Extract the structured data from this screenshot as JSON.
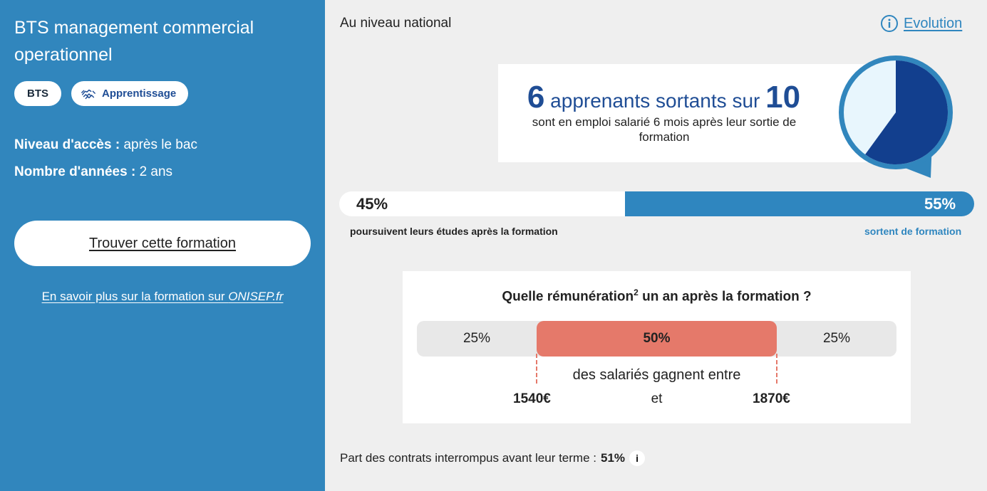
{
  "sidebar": {
    "title": "BTS management commercial operationnel",
    "tags": [
      "BTS",
      "Apprentissage"
    ],
    "access_label": "Niveau d'accès :",
    "access_value": "après le bac",
    "years_label": "Nombre d'années :",
    "years_value": "2 ans",
    "find_button": "Trouver cette formation",
    "more_link_prefix": "En savoir plus sur la formation sur ",
    "more_link_site": "ONISEP.fr"
  },
  "main": {
    "scope": "Au niveau national",
    "evolution_label": "Evolution",
    "stat": {
      "count": "6",
      "text_mid": "apprenants sortants sur",
      "total": "10",
      "description": "sont en emploi salarié 6 mois après leur sortie de formation",
      "share": 0.6
    },
    "split": {
      "left_value": "45%",
      "right_value": "55%",
      "right_fraction": 0.55,
      "left_label": "poursuivent leurs études après la formation",
      "right_label": "sortent de formation"
    },
    "salary": {
      "question": "Quelle rémunération",
      "question_sup": "2",
      "question_end": "un an après la formation ?",
      "left_pct": "25%",
      "mid_pct": "50%",
      "right_pct": "25%",
      "earn_text": "des salariés gagnent entre",
      "low": "1540€",
      "and": "et",
      "high": "1870€"
    },
    "contracts": {
      "label": "Part des contrats interrompus avant leur terme :",
      "value": "51%",
      "info": "i"
    }
  },
  "colors": {
    "primary": "#3186bd",
    "dark_blue": "#1f4d95",
    "salmon": "#e5796a",
    "background": "#efefef"
  }
}
